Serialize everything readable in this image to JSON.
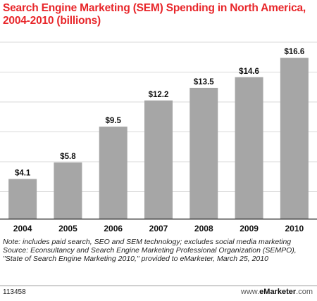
{
  "chart_data": {
    "type": "bar",
    "title": "Search Engine Marketing (SEM) Spending in North America, 2004-2010 (billions)",
    "categories": [
      "2004",
      "2005",
      "2006",
      "2007",
      "2008",
      "2009",
      "2010"
    ],
    "values": [
      4.1,
      5.8,
      9.5,
      12.2,
      13.5,
      14.6,
      16.6
    ],
    "value_labels": [
      "$4.1",
      "$5.8",
      "$9.5",
      "$12.2",
      "$13.5",
      "$14.6",
      "$16.6"
    ],
    "xlabel": "",
    "ylabel": "",
    "ylim": [
      0,
      18.5
    ],
    "grid": true,
    "legend": "none",
    "bar_color": "#a6a6a6",
    "grid_color": "#d9d9d9"
  },
  "notes": {
    "note": "Note: includes paid search, SEO and SEM technology; excludes social media marketing",
    "source": "Source: Econsultancy and Search Engine Marketing Professional Organization (SEMPO), \"State of Search Engine Marketing 2010,\" provided to eMarketer, March 25, 2010"
  },
  "footer": {
    "id": "113458",
    "brand_pre": "www.",
    "brand_mid": "eMarketer",
    "brand_post": ".com"
  },
  "colors": {
    "title": "#e8262a"
  }
}
